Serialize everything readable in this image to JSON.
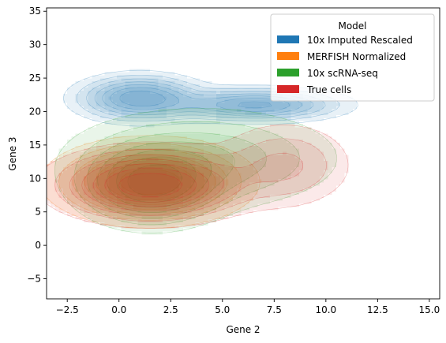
{
  "chart_data": {
    "type": "density-contour",
    "title": "",
    "xlabel": "Gene 2",
    "ylabel": "Gene 3",
    "xlim": [
      -3.5,
      15.5
    ],
    "ylim": [
      -8,
      35.5
    ],
    "xticks": [
      -2.5,
      0.0,
      2.5,
      5.0,
      7.5,
      10.0,
      12.5,
      15.0
    ],
    "xtick_labels": [
      "−2.5",
      "0.0",
      "2.5",
      "5.0",
      "7.5",
      "10.0",
      "12.5",
      "15.0"
    ],
    "yticks": [
      -5,
      0,
      5,
      10,
      15,
      20,
      25,
      30,
      35
    ],
    "ytick_labels": [
      "−5",
      "0",
      "5",
      "10",
      "15",
      "20",
      "25",
      "30",
      "35"
    ],
    "grid": false,
    "legend": {
      "title": "Model",
      "placement": "upper-right"
    },
    "series": [
      {
        "name": "10x Imputed Rescaled",
        "color": "#1f77b4",
        "peaks": [
          {
            "x": 1.0,
            "y": 22.0,
            "sx": 1.6,
            "sy": 1.8,
            "w": 1.0
          },
          {
            "x": 6.6,
            "y": 21.0,
            "sx": 2.2,
            "sy": 1.3,
            "w": 0.9
          }
        ]
      },
      {
        "name": "MERFISH Normalized",
        "color": "#ff7f0e",
        "peaks": [
          {
            "x": 1.5,
            "y": 9.5,
            "sx": 2.3,
            "sy": 3.0,
            "w": 1.0
          }
        ]
      },
      {
        "name": "10x scRNA-seq",
        "color": "#2ca02c",
        "peaks": [
          {
            "x": 1.5,
            "y": 9.0,
            "sx": 1.8,
            "sy": 3.2,
            "w": 1.0
          },
          {
            "x": 4.0,
            "y": 13.0,
            "sx": 3.5,
            "sy": 4.0,
            "w": 0.5
          }
        ]
      },
      {
        "name": "True cells",
        "color": "#d62728",
        "peaks": [
          {
            "x": 1.5,
            "y": 9.0,
            "sx": 2.4,
            "sy": 2.8,
            "w": 1.0
          },
          {
            "x": 8.0,
            "y": 12.0,
            "sx": 1.8,
            "sy": 3.5,
            "w": 0.3
          }
        ]
      }
    ]
  }
}
